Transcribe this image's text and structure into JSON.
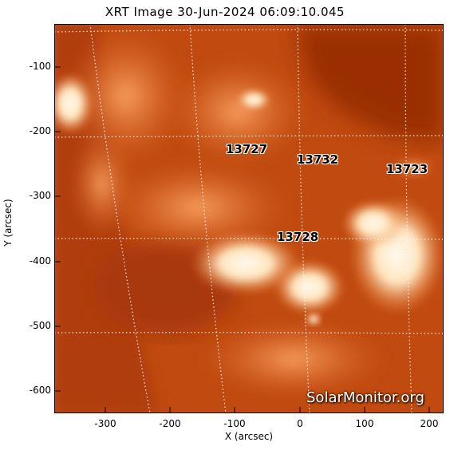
{
  "title": "XRT Image 30-Jun-2024 06:09:10.045",
  "axes": {
    "xlabel": "X (arcsec)",
    "ylabel": "Y (arcsec)",
    "x_ticks": [
      "-300",
      "-200",
      "-100",
      "0",
      "100",
      "200"
    ],
    "y_ticks": [
      "-100",
      "-200",
      "-300",
      "-400",
      "-500",
      "-600"
    ]
  },
  "regions": [
    {
      "label": "13727"
    },
    {
      "label": "13732"
    },
    {
      "label": "13723"
    },
    {
      "label": "13728"
    }
  ],
  "watermark": "SolarMonitor.org",
  "colors": {
    "background_disk": "#b8400a",
    "bright_emission": "#fff4e0",
    "grid": "#ffffff"
  }
}
